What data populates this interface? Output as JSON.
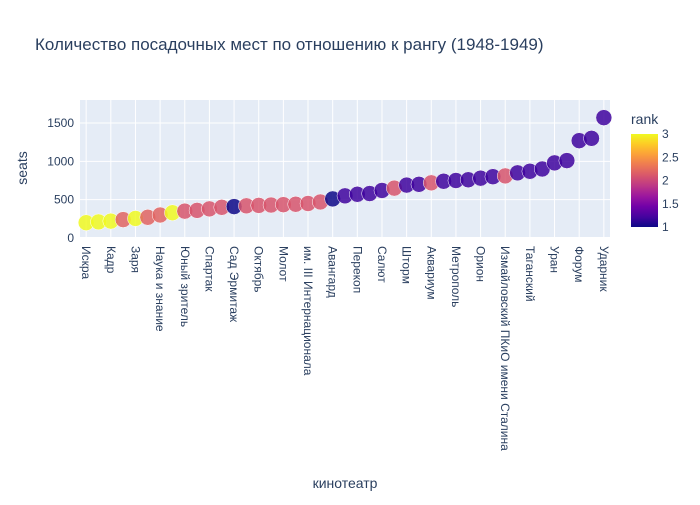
{
  "chart_data": {
    "type": "scatter",
    "title": "Количество посадочных мест по отношению к рангу (1948-1949)",
    "xlabel": "кинотеатр",
    "ylabel": "seats",
    "ylim": [
      0,
      1800
    ],
    "yticks": [
      0,
      500,
      1000,
      1500
    ],
    "grid": true,
    "colorbar": {
      "title": "rank",
      "min": 1,
      "max": 3,
      "ticks": [
        1,
        1.5,
        2,
        2.5,
        3
      ]
    },
    "tick_labels": [
      "Искра",
      "Кадр",
      "Заря",
      "Наука и знание",
      "Юный зритель",
      "Спартак",
      "Сад Эрмитаж",
      "Октябрь",
      "Молот",
      "им. III Интернационала",
      "Авангард",
      "Перекоп",
      "Салют",
      "Шторм",
      "Аквариум",
      "Метрополь",
      "Орион",
      "Измайловский ПКиО имени Сталина",
      "Таганский",
      "Уран",
      "Форум",
      "Ударник"
    ],
    "points": [
      {
        "x": "Искра",
        "y": 200,
        "rank": 3
      },
      {
        "x": "",
        "y": 210,
        "rank": 3
      },
      {
        "x": "Кадр",
        "y": 220,
        "rank": 3
      },
      {
        "x": "",
        "y": 240,
        "rank": 2.2
      },
      {
        "x": "Заря",
        "y": 255,
        "rank": 3
      },
      {
        "x": "",
        "y": 270,
        "rank": 2.2
      },
      {
        "x": "Наука и знание",
        "y": 300,
        "rank": 2.2
      },
      {
        "x": "",
        "y": 330,
        "rank": 3
      },
      {
        "x": "Юный зритель",
        "y": 350,
        "rank": 2.1
      },
      {
        "x": "",
        "y": 360,
        "rank": 2.1
      },
      {
        "x": "Спартак",
        "y": 380,
        "rank": 2.1
      },
      {
        "x": "",
        "y": 400,
        "rank": 2.1
      },
      {
        "x": "Сад Эрмитаж",
        "y": 410,
        "rank": 1
      },
      {
        "x": "",
        "y": 420,
        "rank": 2.1
      },
      {
        "x": "Октябрь",
        "y": 425,
        "rank": 2.1
      },
      {
        "x": "",
        "y": 430,
        "rank": 2.1
      },
      {
        "x": "Молот",
        "y": 435,
        "rank": 2.1
      },
      {
        "x": "",
        "y": 440,
        "rank": 2.1
      },
      {
        "x": "им. III Интернационала",
        "y": 450,
        "rank": 2.1
      },
      {
        "x": "",
        "y": 470,
        "rank": 2.1
      },
      {
        "x": "Авангард",
        "y": 510,
        "rank": 1
      },
      {
        "x": "",
        "y": 550,
        "rank": 1.2
      },
      {
        "x": "Перекоп",
        "y": 570,
        "rank": 1.2
      },
      {
        "x": "",
        "y": 580,
        "rank": 1.2
      },
      {
        "x": "Салют",
        "y": 620,
        "rank": 1.2
      },
      {
        "x": "",
        "y": 650,
        "rank": 2.1
      },
      {
        "x": "Шторм",
        "y": 690,
        "rank": 1.2
      },
      {
        "x": "",
        "y": 700,
        "rank": 1.2
      },
      {
        "x": "Аквариум",
        "y": 720,
        "rank": 2.1
      },
      {
        "x": "",
        "y": 740,
        "rank": 1.2
      },
      {
        "x": "Метрополь",
        "y": 750,
        "rank": 1.2
      },
      {
        "x": "",
        "y": 760,
        "rank": 1.2
      },
      {
        "x": "Орион",
        "y": 780,
        "rank": 1.2
      },
      {
        "x": "",
        "y": 800,
        "rank": 1.2
      },
      {
        "x": "Измайловский ПКиО имени Сталина",
        "y": 810,
        "rank": 2.1
      },
      {
        "x": "",
        "y": 850,
        "rank": 1.2
      },
      {
        "x": "Таганский",
        "y": 870,
        "rank": 1.2
      },
      {
        "x": "",
        "y": 900,
        "rank": 1.2
      },
      {
        "x": "Уран",
        "y": 980,
        "rank": 1.2
      },
      {
        "x": "",
        "y": 1010,
        "rank": 1.2
      },
      {
        "x": "Форум",
        "y": 1270,
        "rank": 1.2
      },
      {
        "x": "",
        "y": 1300,
        "rank": 1.2
      },
      {
        "x": "Ударник",
        "y": 1570,
        "rank": 1.2
      }
    ]
  }
}
